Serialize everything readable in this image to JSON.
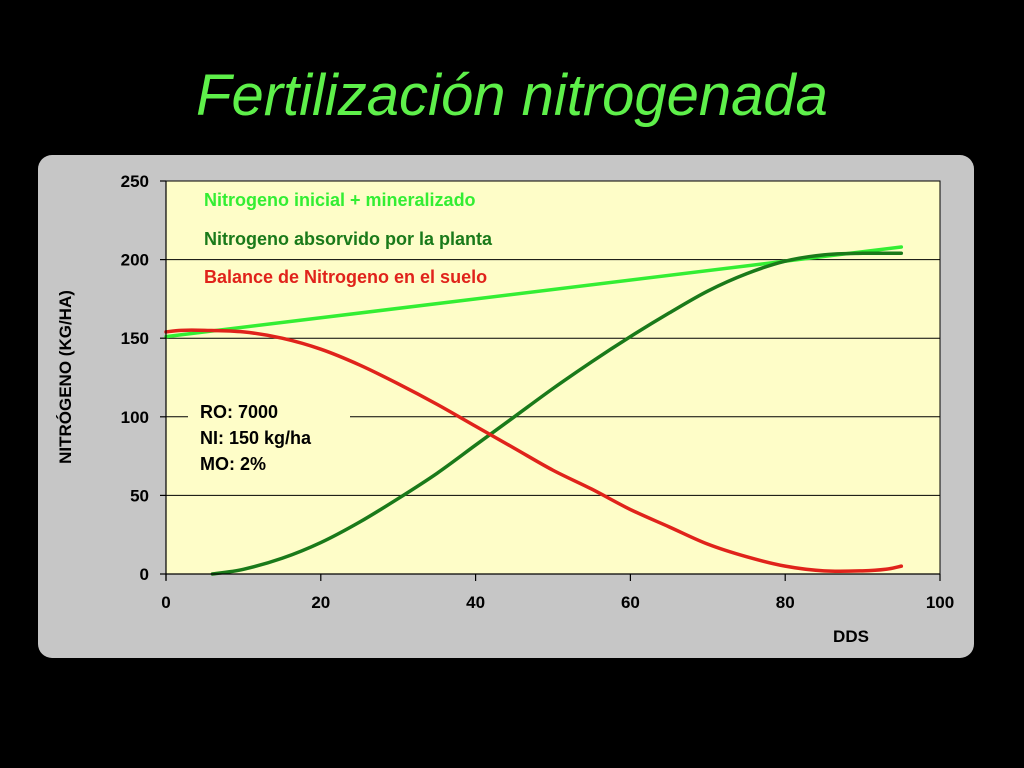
{
  "slide": {
    "title": "Fertilización nitrogenada"
  },
  "colors": {
    "title": "#5ef04a",
    "plot_bg": "#fefdc8",
    "panel_bg": "#c6c6c6",
    "series_initial": "#33ee33",
    "series_absorbed": "#1a7a1a",
    "series_balance": "#e0231b"
  },
  "chart_data": {
    "type": "line",
    "title": "",
    "xlabel": "DDS",
    "ylabel": "NITRÓGENO (KG/HA)",
    "xlim": [
      0,
      100
    ],
    "ylim": [
      0,
      250
    ],
    "xticks": [
      "0",
      "20",
      "40",
      "60",
      "80",
      "100"
    ],
    "yticks": [
      "0",
      "50",
      "100",
      "150",
      "200",
      "250"
    ],
    "grid": "horizontal",
    "legend_position": "top-left",
    "series": [
      {
        "name": "Nitrogeno inicial + mineralizado",
        "color": "#33ee33",
        "x": [
          0,
          95
        ],
        "y": [
          151,
          208
        ]
      },
      {
        "name": "Nitrogeno absorvido por la planta",
        "color": "#1a7a1a",
        "x": [
          6,
          10,
          15,
          20,
          25,
          30,
          35,
          40,
          45,
          50,
          55,
          60,
          65,
          70,
          75,
          80,
          85,
          90,
          95
        ],
        "y": [
          0,
          3,
          10,
          20,
          33,
          48,
          64,
          82,
          100,
          118,
          135,
          151,
          166,
          180,
          191,
          199,
          203,
          204,
          204
        ]
      },
      {
        "name": "Balance de Nitrogeno en el suelo",
        "color": "#e0231b",
        "x": [
          0,
          2,
          5,
          10,
          15,
          20,
          25,
          30,
          35,
          40,
          45,
          50,
          55,
          60,
          65,
          70,
          75,
          80,
          85,
          90,
          93,
          95
        ],
        "y": [
          154,
          155,
          155,
          154,
          150,
          143,
          133,
          121,
          108,
          94,
          80,
          66,
          54,
          41,
          30,
          19,
          11,
          5,
          2,
          2,
          3,
          5
        ]
      }
    ],
    "annotation": [
      "RO: 7000",
      "NI: 150 kg/ha",
      "MO: 2%"
    ]
  }
}
